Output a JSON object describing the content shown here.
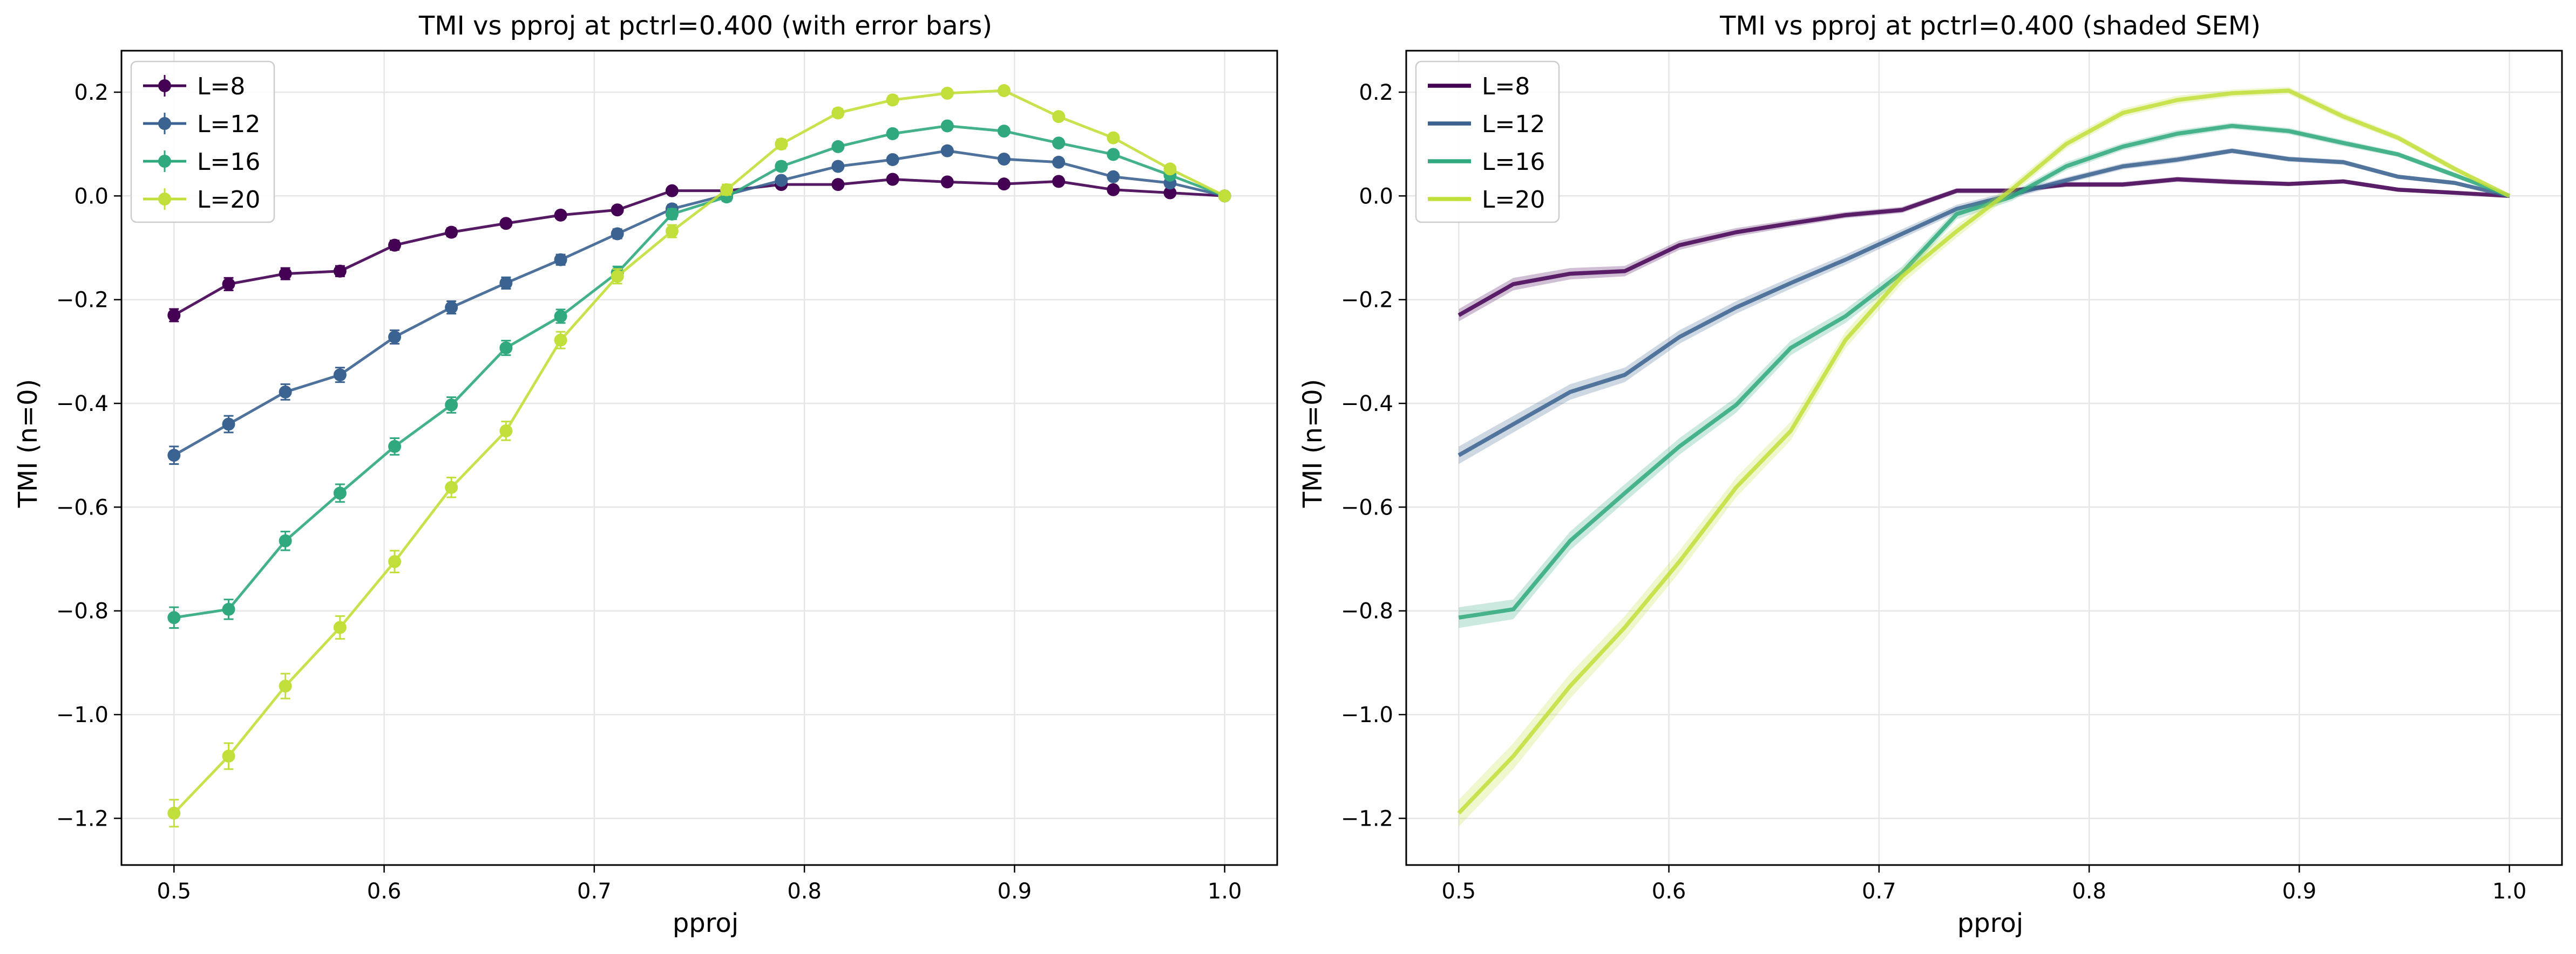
{
  "chart_data": [
    {
      "type": "line",
      "title": "TMI vs pproj at pctrl=0.400 (with error bars)",
      "xlabel": "pproj",
      "ylabel": "TMI (n=0)",
      "xlim": [
        0.475,
        1.025
      ],
      "ylim": [
        -1.29,
        0.28
      ],
      "xticks": [
        "0.5",
        "0.6",
        "0.7",
        "0.8",
        "0.9",
        "1.0"
      ],
      "yticks": [
        "−1.2",
        "−1.0",
        "−0.8",
        "−0.6",
        "−0.4",
        "−0.2",
        "0.0",
        "0.2"
      ],
      "grid": true,
      "legend_position": "top-left",
      "error_style": "bars",
      "x": [
        0.5,
        0.526,
        0.553,
        0.579,
        0.605,
        0.632,
        0.658,
        0.684,
        0.711,
        0.737,
        0.763,
        0.789,
        0.816,
        0.842,
        0.868,
        0.895,
        0.921,
        0.947,
        0.974,
        1.0
      ],
      "series": [
        {
          "name": "L=8",
          "color": "#440154",
          "values": [
            -0.23,
            -0.17,
            -0.15,
            -0.145,
            -0.095,
            -0.07,
            -0.053,
            -0.037,
            -0.027,
            0.01,
            0.01,
            0.022,
            0.022,
            0.032,
            0.027,
            0.023,
            0.028,
            0.012,
            0.006,
            0.0
          ],
          "errors": [
            0.012,
            0.012,
            0.011,
            0.01,
            0.009,
            0.008,
            0.007,
            0.006,
            0.006,
            0.005,
            0.005,
            0.005,
            0.005,
            0.005,
            0.005,
            0.004,
            0.004,
            0.004,
            0.003,
            0.0
          ]
        },
        {
          "name": "L=12",
          "color": "#3b6391",
          "values": [
            -0.5,
            -0.44,
            -0.378,
            -0.345,
            -0.272,
            -0.215,
            -0.168,
            -0.123,
            -0.073,
            -0.025,
            0.002,
            0.03,
            0.057,
            0.07,
            0.087,
            0.071,
            0.065,
            0.037,
            0.025,
            0.0
          ],
          "errors": [
            0.017,
            0.016,
            0.015,
            0.014,
            0.013,
            0.012,
            0.011,
            0.01,
            0.009,
            0.008,
            0.007,
            0.006,
            0.006,
            0.006,
            0.005,
            0.005,
            0.005,
            0.004,
            0.004,
            0.0
          ]
        },
        {
          "name": "L=16",
          "color": "#2fa97d",
          "values": [
            -0.813,
            -0.797,
            -0.665,
            -0.573,
            -0.483,
            -0.403,
            -0.293,
            -0.232,
            -0.148,
            -0.035,
            -0.002,
            0.057,
            0.095,
            0.12,
            0.135,
            0.125,
            0.102,
            0.08,
            0.04,
            0.0
          ],
          "errors": [
            0.02,
            0.019,
            0.018,
            0.017,
            0.016,
            0.015,
            0.014,
            0.013,
            0.012,
            0.01,
            0.008,
            0.008,
            0.007,
            0.007,
            0.006,
            0.006,
            0.006,
            0.005,
            0.005,
            0.0
          ]
        },
        {
          "name": "L=20",
          "color": "#c1df3a",
          "values": [
            -1.19,
            -1.08,
            -0.945,
            -0.832,
            -0.705,
            -0.562,
            -0.453,
            -0.278,
            -0.155,
            -0.068,
            0.012,
            0.1,
            0.16,
            0.185,
            0.198,
            0.203,
            0.153,
            0.112,
            0.052,
            0.0
          ],
          "errors": [
            0.026,
            0.025,
            0.024,
            0.022,
            0.021,
            0.019,
            0.018,
            0.016,
            0.014,
            0.012,
            0.01,
            0.009,
            0.008,
            0.008,
            0.007,
            0.007,
            0.007,
            0.006,
            0.006,
            0.0
          ]
        }
      ]
    },
    {
      "type": "line",
      "title": "TMI vs pproj at pctrl=0.400 (shaded SEM)",
      "xlabel": "pproj",
      "ylabel": "TMI (n=0)",
      "xlim": [
        0.475,
        1.025
      ],
      "ylim": [
        -1.29,
        0.28
      ],
      "xticks": [
        "0.5",
        "0.6",
        "0.7",
        "0.8",
        "0.9",
        "1.0"
      ],
      "yticks": [
        "−1.2",
        "−1.0",
        "−0.8",
        "−0.6",
        "−0.4",
        "−0.2",
        "0.0",
        "0.2"
      ],
      "grid": true,
      "legend_position": "top-left",
      "error_style": "shaded",
      "x": [
        0.5,
        0.526,
        0.553,
        0.579,
        0.605,
        0.632,
        0.658,
        0.684,
        0.711,
        0.737,
        0.763,
        0.789,
        0.816,
        0.842,
        0.868,
        0.895,
        0.921,
        0.947,
        0.974,
        1.0
      ],
      "series": [
        {
          "name": "L=8",
          "color": "#440154",
          "values": [
            -0.23,
            -0.17,
            -0.15,
            -0.145,
            -0.095,
            -0.07,
            -0.053,
            -0.037,
            -0.027,
            0.01,
            0.01,
            0.022,
            0.022,
            0.032,
            0.027,
            0.023,
            0.028,
            0.012,
            0.006,
            0.0
          ],
          "errors": [
            0.012,
            0.012,
            0.011,
            0.01,
            0.009,
            0.008,
            0.007,
            0.006,
            0.006,
            0.005,
            0.005,
            0.005,
            0.005,
            0.005,
            0.005,
            0.004,
            0.004,
            0.004,
            0.003,
            0.0
          ]
        },
        {
          "name": "L=12",
          "color": "#3b6391",
          "values": [
            -0.5,
            -0.44,
            -0.378,
            -0.345,
            -0.272,
            -0.215,
            -0.168,
            -0.123,
            -0.073,
            -0.025,
            0.002,
            0.03,
            0.057,
            0.07,
            0.087,
            0.071,
            0.065,
            0.037,
            0.025,
            0.0
          ],
          "errors": [
            0.017,
            0.016,
            0.015,
            0.014,
            0.013,
            0.012,
            0.011,
            0.01,
            0.009,
            0.008,
            0.007,
            0.006,
            0.006,
            0.006,
            0.005,
            0.005,
            0.005,
            0.004,
            0.004,
            0.0
          ]
        },
        {
          "name": "L=16",
          "color": "#2fa97d",
          "values": [
            -0.813,
            -0.797,
            -0.665,
            -0.573,
            -0.483,
            -0.403,
            -0.293,
            -0.232,
            -0.148,
            -0.035,
            -0.002,
            0.057,
            0.095,
            0.12,
            0.135,
            0.125,
            0.102,
            0.08,
            0.04,
            0.0
          ],
          "errors": [
            0.02,
            0.019,
            0.018,
            0.017,
            0.016,
            0.015,
            0.014,
            0.013,
            0.012,
            0.01,
            0.008,
            0.008,
            0.007,
            0.007,
            0.006,
            0.006,
            0.006,
            0.005,
            0.005,
            0.0
          ]
        },
        {
          "name": "L=20",
          "color": "#c1df3a",
          "values": [
            -1.19,
            -1.08,
            -0.945,
            -0.832,
            -0.705,
            -0.562,
            -0.453,
            -0.278,
            -0.155,
            -0.068,
            0.012,
            0.1,
            0.16,
            0.185,
            0.198,
            0.203,
            0.153,
            0.112,
            0.052,
            0.0
          ],
          "errors": [
            0.026,
            0.025,
            0.024,
            0.022,
            0.021,
            0.019,
            0.018,
            0.016,
            0.014,
            0.012,
            0.01,
            0.009,
            0.008,
            0.008,
            0.007,
            0.007,
            0.007,
            0.006,
            0.006,
            0.0
          ]
        }
      ]
    }
  ]
}
